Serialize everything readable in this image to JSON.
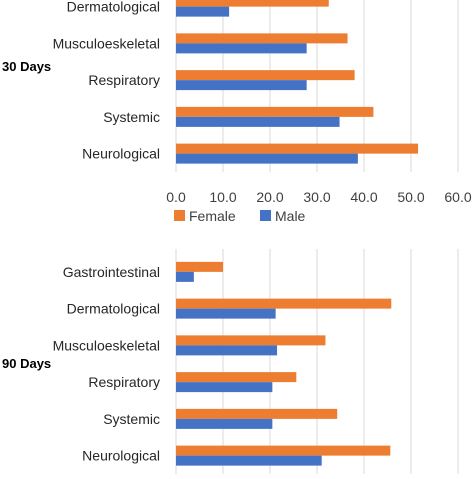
{
  "chart_data": [
    {
      "type": "bar",
      "orientation": "horizontal",
      "group_label": "30 Days",
      "categories": [
        "Dermatological",
        "Musculoeskeletal",
        "Respiratory",
        "Systemic",
        "Neurological"
      ],
      "series": [
        {
          "name": "Female",
          "color": "#ED7D31",
          "values": [
            32.5,
            36.5,
            38.0,
            42.0,
            51.5
          ]
        },
        {
          "name": "Male",
          "color": "#4472C4",
          "values": [
            11.3,
            27.8,
            27.8,
            34.8,
            38.7
          ]
        }
      ],
      "xlim": [
        0,
        60
      ],
      "xticks": [
        "0.0",
        "10.0",
        "20.0",
        "30.0",
        "40.0",
        "50.0",
        "60.0"
      ],
      "grid": true,
      "legend": "bottom"
    },
    {
      "type": "bar",
      "orientation": "horizontal",
      "group_label": "90 Days",
      "categories": [
        "Gastrointestinal",
        "Dermatological",
        "Musculoeskeletal",
        "Respiratory",
        "Systemic",
        "Neurological"
      ],
      "series": [
        {
          "name": "Female",
          "color": "#ED7D31",
          "values": [
            10.0,
            45.8,
            31.8,
            25.6,
            34.3,
            45.6
          ]
        },
        {
          "name": "Male",
          "color": "#4472C4",
          "values": [
            3.8,
            21.2,
            21.5,
            20.5,
            20.5,
            31.0
          ]
        }
      ],
      "xlim": [
        0,
        60
      ],
      "grid": true
    }
  ]
}
